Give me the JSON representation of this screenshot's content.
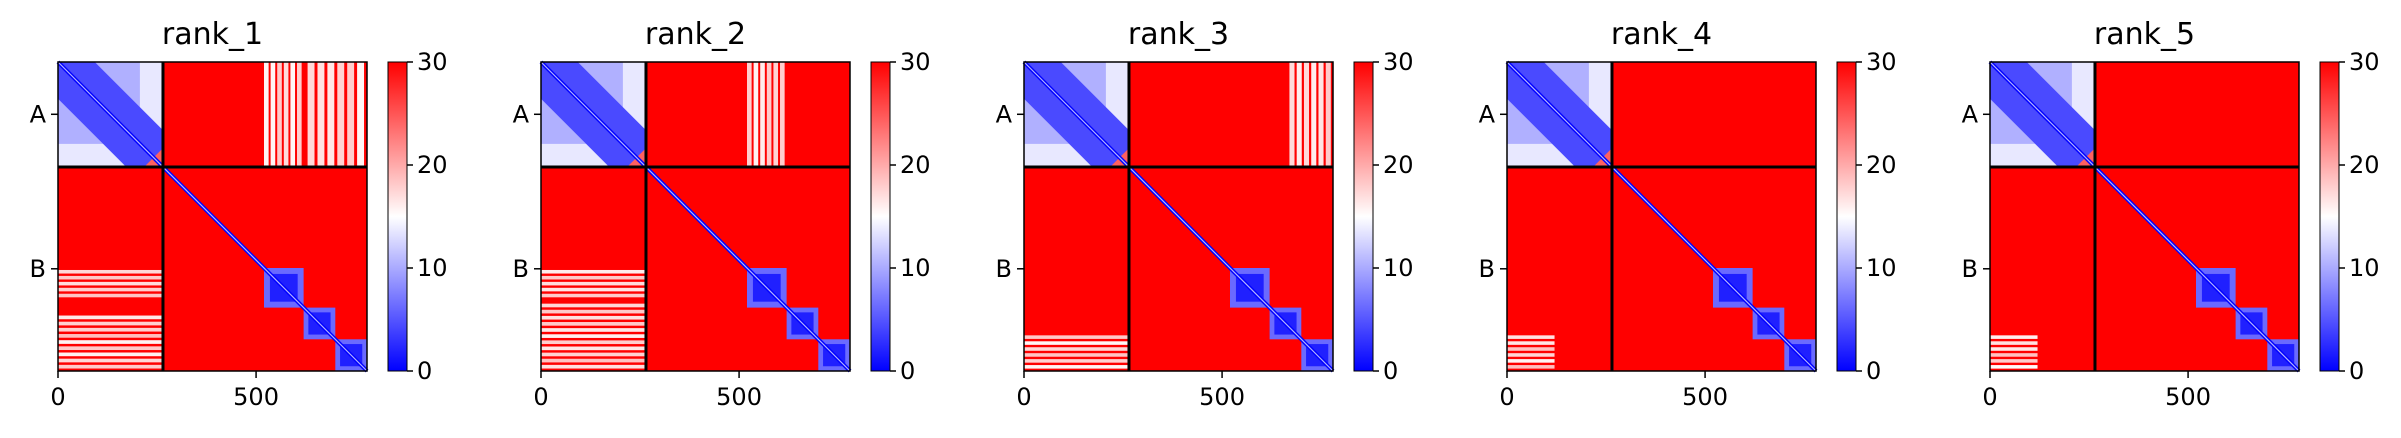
{
  "chart_data": {
    "type": "heatmap",
    "colormap": {
      "low": "#0000ff",
      "mid": "#ffffff",
      "high": "#ff0000"
    },
    "colorbar": {
      "min": 0,
      "max": 30,
      "ticks": [
        "0",
        "10",
        "20",
        "30"
      ]
    },
    "x_ticks": [
      {
        "value": 0,
        "label": "0"
      },
      {
        "value": 500,
        "label": "500"
      }
    ],
    "total_residues": 780,
    "chain_boundary": 265,
    "chains": [
      {
        "label": "A",
        "center": 132
      },
      {
        "label": "B",
        "center": 522
      }
    ],
    "domains_B": [
      [
        265,
        520
      ],
      [
        520,
        620
      ],
      [
        620,
        700
      ],
      [
        700,
        780
      ]
    ],
    "panels": [
      {
        "title": "rank_1",
        "ab_patches": [
          [
            520,
            620
          ],
          [
            630,
            780
          ]
        ],
        "ba_patches": [
          [
            0,
            265,
            525,
            600
          ],
          [
            0,
            265,
            640,
            780
          ]
        ]
      },
      {
        "title": "rank_2",
        "ab_patches": [
          [
            520,
            620
          ]
        ],
        "ba_patches": [
          [
            0,
            265,
            525,
            600
          ],
          [
            0,
            265,
            610,
            780
          ]
        ]
      },
      {
        "title": "rank_3",
        "ab_patches": [
          [
            670,
            780
          ]
        ],
        "ba_patches": [
          [
            0,
            265,
            690,
            780
          ]
        ]
      },
      {
        "title": "rank_4",
        "ab_patches": [],
        "ba_patches": [
          [
            0,
            120,
            690,
            780
          ]
        ]
      },
      {
        "title": "rank_5",
        "ab_patches": [],
        "ba_patches": [
          [
            0,
            120,
            690,
            780
          ]
        ]
      }
    ]
  }
}
